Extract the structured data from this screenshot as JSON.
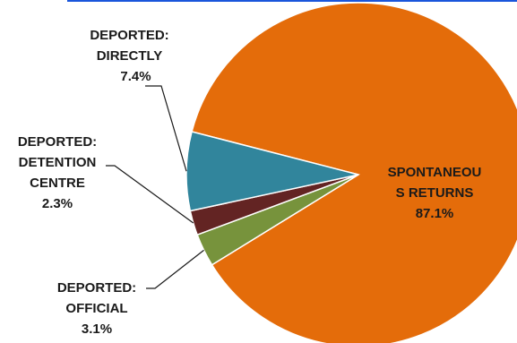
{
  "chart_data": {
    "type": "pie",
    "slices": [
      {
        "label_lines": [
          "SPONTANEOU",
          "S RETURNS",
          "87.1%"
        ],
        "value": 87.1,
        "color": "#E46C0A"
      },
      {
        "label_lines": [
          "DEPORTED:",
          "OFFICIAL",
          "3.1%"
        ],
        "value": 3.1,
        "color": "#77933C"
      },
      {
        "label_lines": [
          "DEPORTED:",
          "DETENTION",
          "CENTRE",
          "2.3%"
        ],
        "value": 2.3,
        "color": "#632423"
      },
      {
        "label_lines": [
          "DEPORTED:",
          "DIRECTLY",
          "7.4%"
        ],
        "value": 7.4,
        "color": "#31859C"
      }
    ],
    "legend": "none",
    "labels": "callout"
  }
}
